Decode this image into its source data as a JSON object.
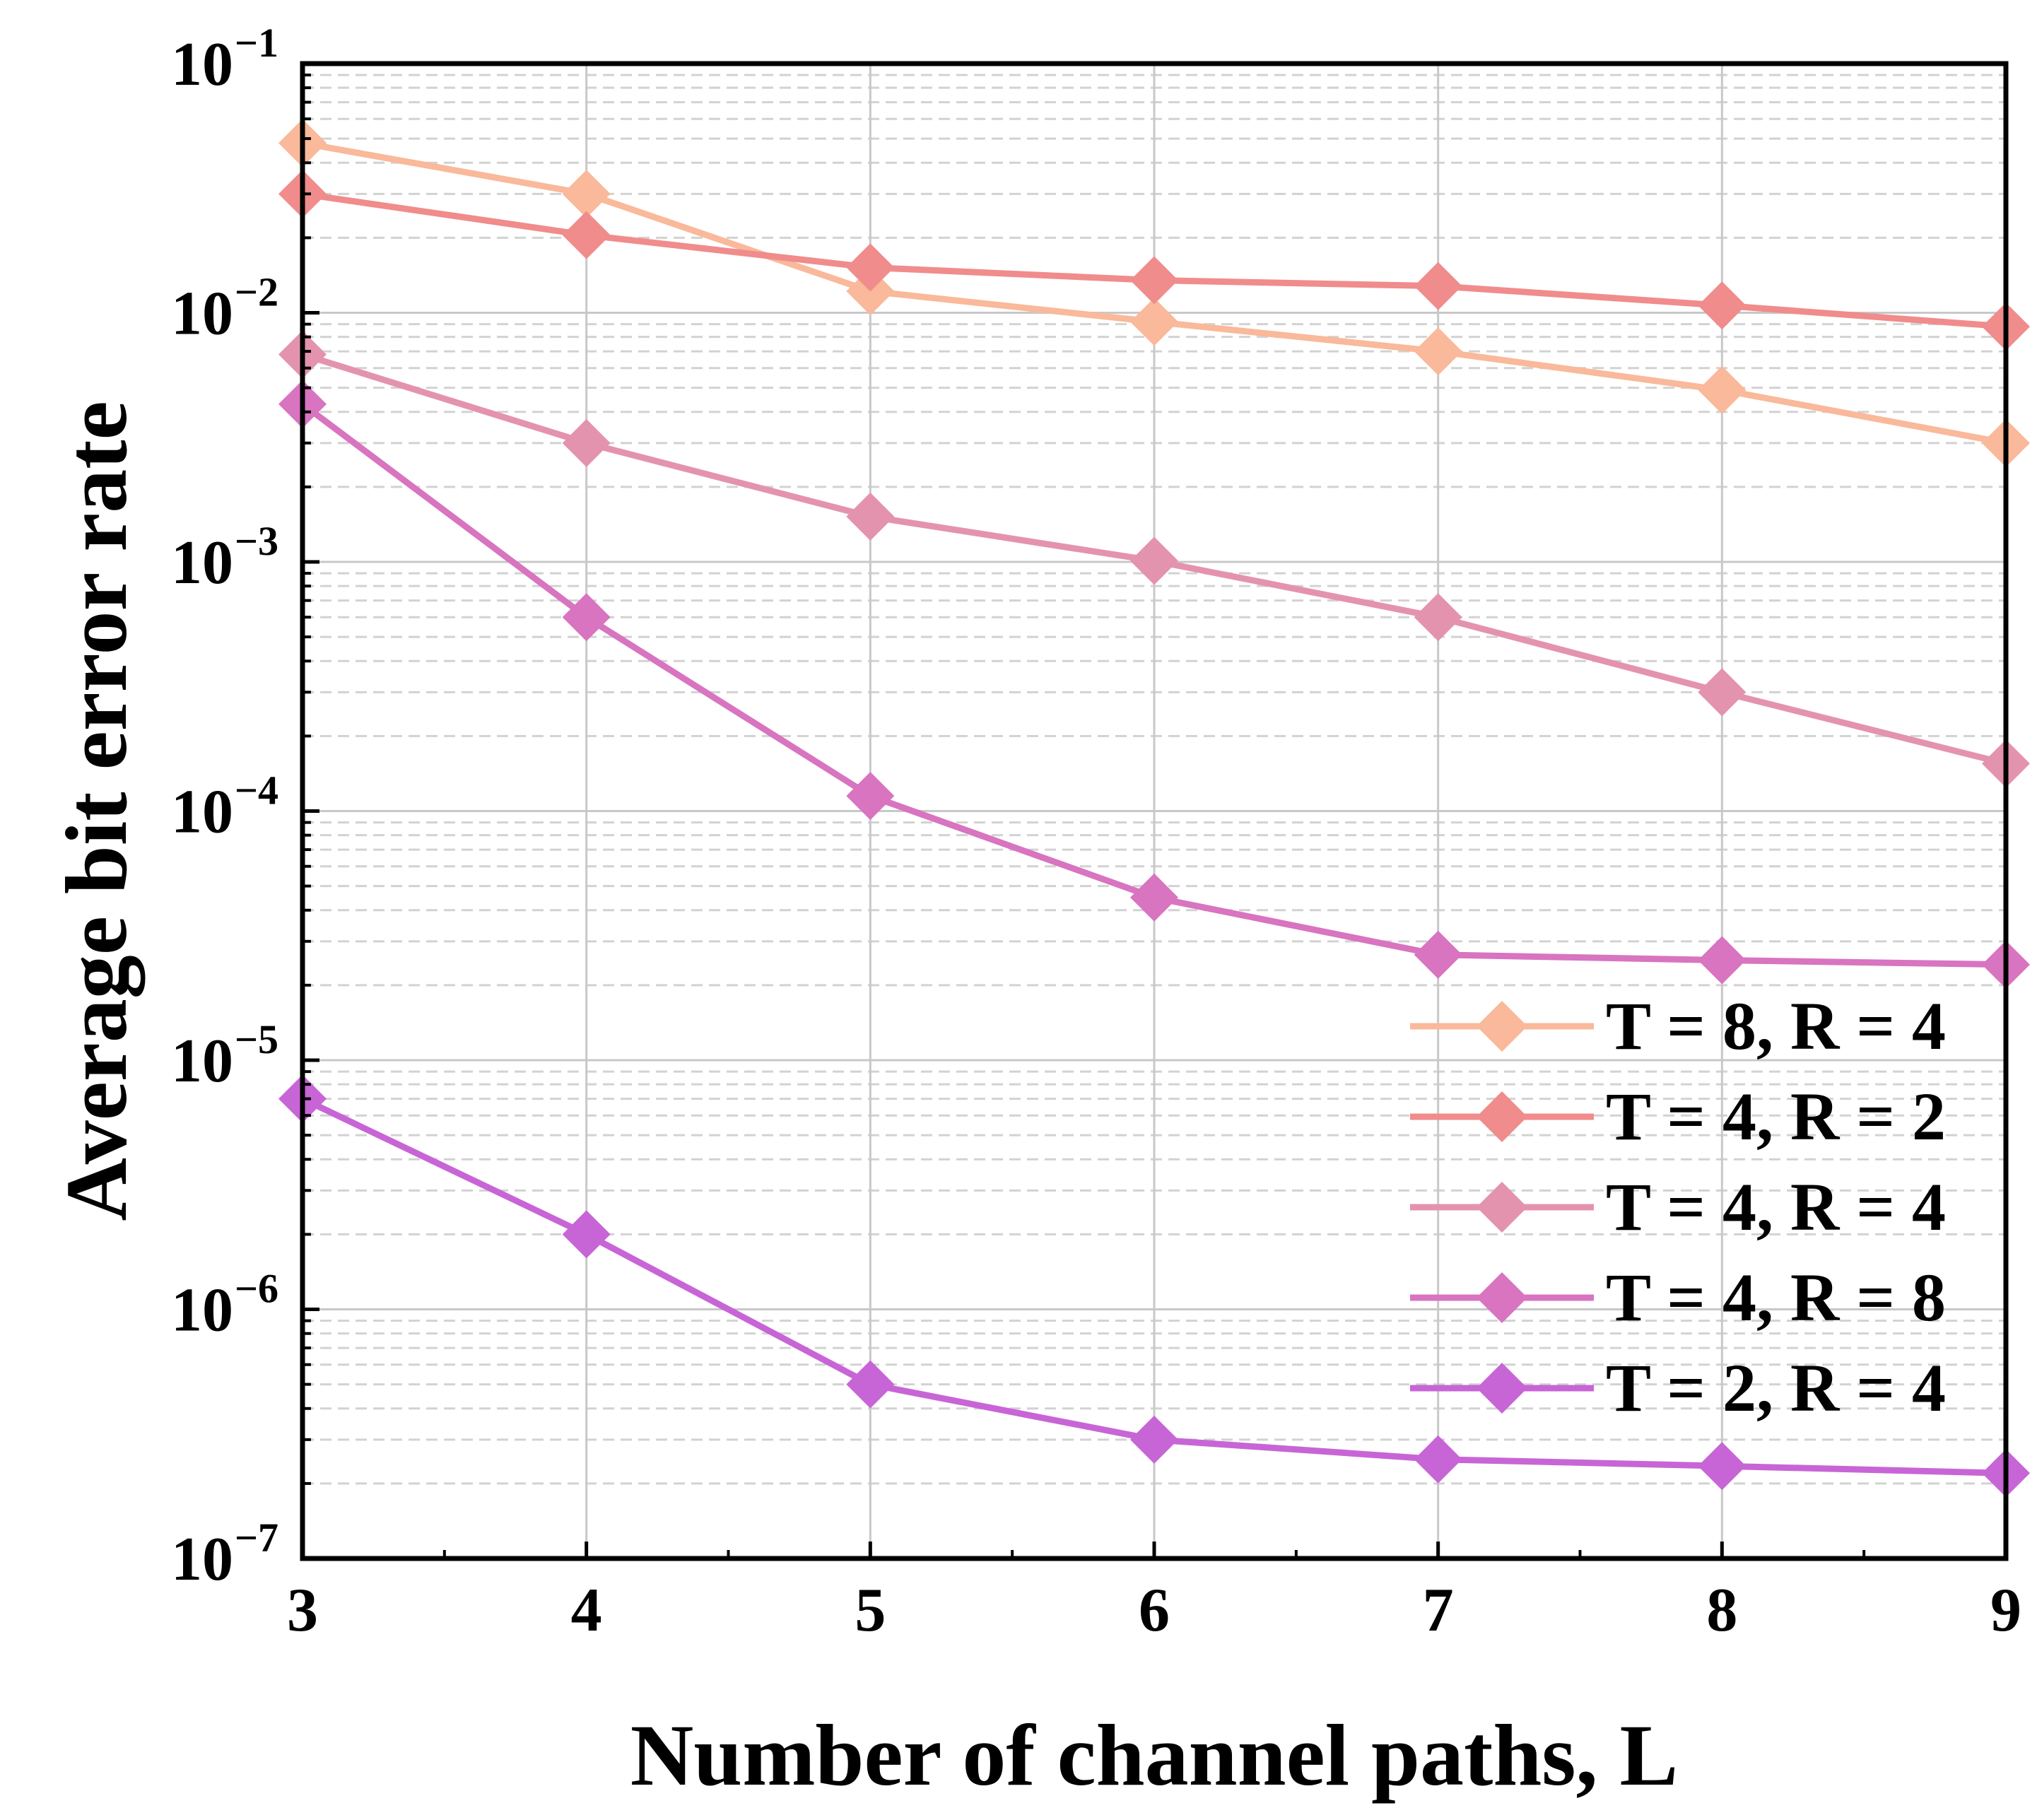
{
  "chart_data": {
    "type": "line",
    "xlabel": "Number of channel paths, L",
    "ylabel": "Average bit error rate",
    "x": [
      3,
      4,
      5,
      6,
      7,
      8,
      9
    ],
    "xlim": [
      3,
      9
    ],
    "ylim": [
      1e-07,
      0.1
    ],
    "yscale": "log",
    "xticks": [
      "3",
      "4",
      "5",
      "6",
      "7",
      "8",
      "9"
    ],
    "yticks": [
      {
        "base": "10",
        "exp": "−1",
        "value": 0.1
      },
      {
        "base": "10",
        "exp": "−2",
        "value": 0.01
      },
      {
        "base": "10",
        "exp": "−3",
        "value": 0.001
      },
      {
        "base": "10",
        "exp": "−4",
        "value": 0.0001
      },
      {
        "base": "10",
        "exp": "−5",
        "value": 1e-05
      },
      {
        "base": "10",
        "exp": "−6",
        "value": 1e-06
      },
      {
        "base": "10",
        "exp": "−7",
        "value": 1e-07
      }
    ],
    "grid": true,
    "legend_position": "bottom-right",
    "marker": "diamond",
    "series": [
      {
        "name": "T = 8, R = 4",
        "color": "#F9B99A",
        "values": [
          0.048,
          0.03,
          0.0122,
          0.0092,
          0.007,
          0.0049,
          0.003
        ]
      },
      {
        "name": "T = 4, R = 2",
        "color": "#F08C8C",
        "values": [
          0.03,
          0.0205,
          0.0152,
          0.0135,
          0.0128,
          0.0107,
          0.0088
        ]
      },
      {
        "name": "T = 4, R = 4",
        "color": "#E493AE",
        "values": [
          0.0068,
          0.003,
          0.00152,
          0.00101,
          0.0006,
          0.0003,
          0.000155
        ]
      },
      {
        "name": "T = 4, R = 8",
        "color": "#D874C0",
        "values": [
          0.0043,
          0.0006,
          0.000115,
          4.5e-05,
          2.65e-05,
          2.52e-05,
          2.42e-05
        ]
      },
      {
        "name": "T = 2, R = 4",
        "color": "#C865D6",
        "values": [
          7e-06,
          2e-06,
          5e-07,
          3e-07,
          2.5e-07,
          2.35e-07,
          2.2e-07
        ]
      }
    ]
  }
}
